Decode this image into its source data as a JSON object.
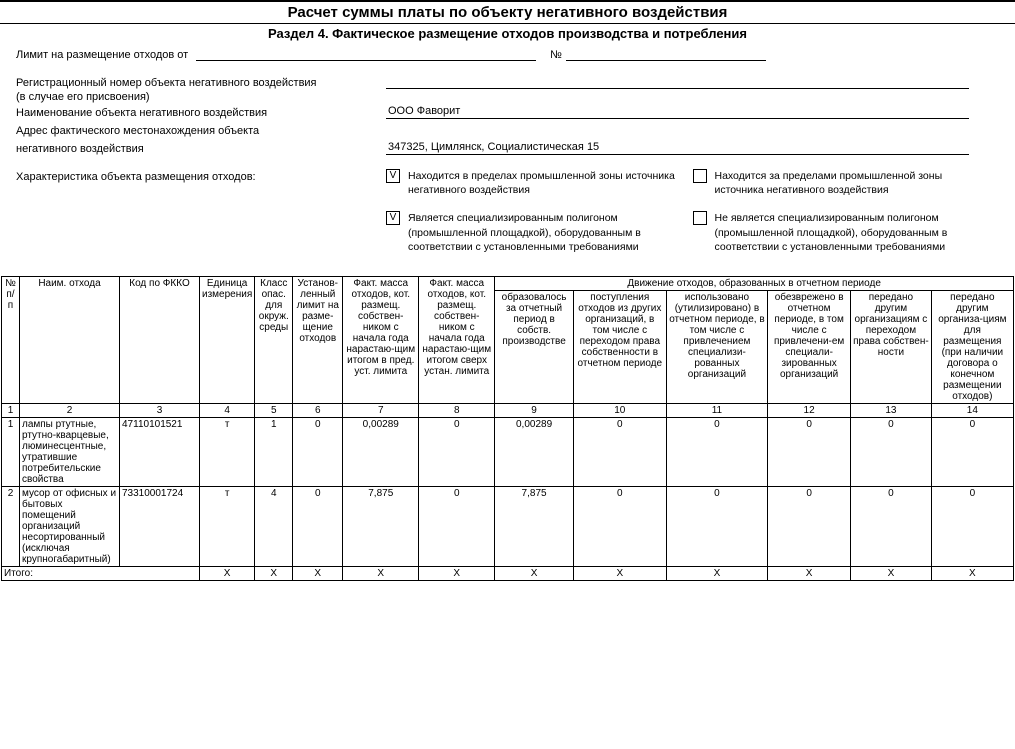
{
  "title": "Расчет суммы платы по объекту негативного воздействия",
  "section": "Раздел 4. Фактическое размещение отходов производства и потребления",
  "limit_label": "Лимит на размещение отходов от",
  "limit_num_symbol": "№",
  "reg_num_label1": "Регистрационный номер объекта негативного воздействия",
  "reg_num_label2": "(в случае его присвоения)",
  "name_label": "Наименование объекта негативного воздействия",
  "name_value": "ООО Фаворит",
  "address_label1": "Адрес фактического местонахождения объекта",
  "address_label2": "негативного воздействия",
  "address_value": "347325, Цимлянск, Социалистическая 15",
  "char_label": "Характеристика объекта размещения отходов:",
  "checks": [
    {
      "checked": "V",
      "text": "Находится в пределах промышленной зоны источника негативного воздействия"
    },
    {
      "checked": "",
      "text": "Находится за пределами промышленной зоны источника негативного воздействия"
    },
    {
      "checked": "V",
      "text": "Является специализированным полигоном (промышленной площадкой), оборудованным в соответствии с установленными требованиями"
    },
    {
      "checked": "",
      "text": "Не является специализированным полигоном (промышленной площадкой), оборудованным в соответствии с установленными требованиями"
    }
  ],
  "headers": {
    "np": "№ п/п",
    "name": "Наим. отхода",
    "code": "Код по ФККО",
    "unit": "Единица измерения",
    "class": "Класс опас. для окруж. среды",
    "limit": "Установ-ленный лимит на разме-щение отходов",
    "fm1": "Факт. масса отходов, кот. размещ. собствен-ником с начала года нарастаю-щим итогом в пред. уст. лимита",
    "fm2": "Факт. масса отходов, кот. размещ. собствен-ником с начала года нарастаю-щим итогом сверх устан. лимита",
    "move_group": "Движение отходов, образованных в отчетном периоде",
    "m9": "образовалось за отчетный период в собств. производстве",
    "m10": "поступления отходов из других организаций, в том числе с переходом права собственности в отчетном периоде",
    "m11": "использовано (утилизировано) в отчетном периоде, в том числе с привлечением специализи-рованных организаций",
    "m12": "обезврежено в отчетном периоде, в том числе с привлечени-ем специали-зированных организаций",
    "m13": "передано другим организациям с переходом права собствен-ности",
    "m14": "передано другим организа-циям для размещения (при наличии договора о конечном размещении отходов)"
  },
  "colnums": [
    "1",
    "2",
    "3",
    "4",
    "5",
    "6",
    "7",
    "8",
    "9",
    "10",
    "11",
    "12",
    "13",
    "14"
  ],
  "rows": [
    {
      "n": "1",
      "name": "лампы ртутные, ртутно-кварцевые, люминесцентные, утратившие потребительские свойства",
      "code": "47110101521",
      "unit": "т",
      "class": "1",
      "limit": "0",
      "fm1": "0,00289",
      "fm2": "0",
      "m9": "0,00289",
      "m10": "0",
      "m11": "0",
      "m12": "0",
      "m13": "0",
      "m14": "0"
    },
    {
      "n": "2",
      "name": "мусор от офисных и бытовых помещений организаций несортированный (исключая крупногабаритный)",
      "code": "73310001724",
      "unit": "т",
      "class": "4",
      "limit": "0",
      "fm1": "7,875",
      "fm2": "0",
      "m9": "7,875",
      "m10": "0",
      "m11": "0",
      "m12": "0",
      "m13": "0",
      "m14": "0"
    }
  ],
  "total_label": "Итого:",
  "x": "X"
}
